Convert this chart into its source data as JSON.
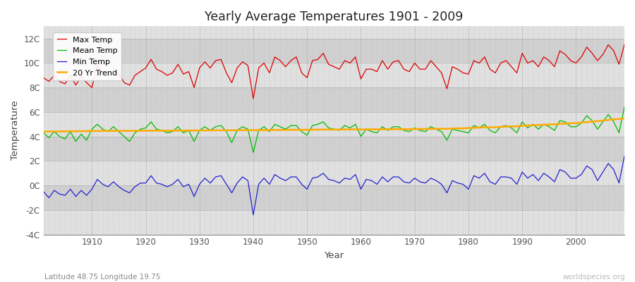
{
  "title": "Yearly Average Temperatures 1901 - 2009",
  "xlabel": "Year",
  "ylabel": "Temperature",
  "subtitle_left": "Latitude 48.75 Longitude 19.75",
  "subtitle_right": "worldspecies.org",
  "ylim": [
    -4,
    13
  ],
  "xlim": [
    1901,
    2009
  ],
  "yticks": [
    -4,
    -2,
    0,
    2,
    4,
    6,
    8,
    10,
    12
  ],
  "ytick_labels": [
    "-4C",
    "-2C",
    "0C",
    "2C",
    "4C",
    "6C",
    "8C",
    "10C",
    "12C"
  ],
  "band_colors": [
    "#e8e8e8",
    "#d8d8d8"
  ],
  "plot_bg_color": "#e8e8e8",
  "line_colors": {
    "max": "#dd0000",
    "mean": "#00bb00",
    "min": "#2222cc",
    "trend": "#ffaa00"
  },
  "legend_labels": [
    "Max Temp",
    "Mean Temp",
    "Min Temp",
    "20 Yr Trend"
  ],
  "years": [
    1901,
    1902,
    1903,
    1904,
    1905,
    1906,
    1907,
    1908,
    1909,
    1910,
    1911,
    1912,
    1913,
    1914,
    1915,
    1916,
    1917,
    1918,
    1919,
    1920,
    1921,
    1922,
    1923,
    1924,
    1925,
    1926,
    1927,
    1928,
    1929,
    1930,
    1931,
    1932,
    1933,
    1934,
    1935,
    1936,
    1937,
    1938,
    1939,
    1940,
    1941,
    1942,
    1943,
    1944,
    1945,
    1946,
    1947,
    1948,
    1949,
    1950,
    1951,
    1952,
    1953,
    1954,
    1955,
    1956,
    1957,
    1958,
    1959,
    1960,
    1961,
    1962,
    1963,
    1964,
    1965,
    1966,
    1967,
    1968,
    1969,
    1970,
    1971,
    1972,
    1973,
    1974,
    1975,
    1976,
    1977,
    1978,
    1979,
    1980,
    1981,
    1982,
    1983,
    1984,
    1985,
    1986,
    1987,
    1988,
    1989,
    1990,
    1991,
    1992,
    1993,
    1994,
    1995,
    1996,
    1997,
    1998,
    1999,
    2000,
    2001,
    2002,
    2003,
    2004,
    2005,
    2006,
    2007,
    2008,
    2009
  ],
  "max_temp": [
    8.8,
    8.5,
    9.0,
    8.5,
    8.3,
    9.0,
    8.2,
    8.9,
    8.4,
    8.0,
    9.8,
    9.2,
    9.0,
    9.5,
    9.1,
    8.4,
    8.2,
    9.0,
    9.3,
    9.6,
    10.3,
    9.5,
    9.3,
    9.0,
    9.2,
    9.9,
    9.1,
    9.3,
    8.0,
    9.6,
    10.1,
    9.6,
    10.2,
    10.3,
    9.2,
    8.4,
    9.6,
    10.1,
    9.8,
    7.1,
    9.6,
    10.0,
    9.2,
    10.5,
    10.2,
    9.7,
    10.2,
    10.5,
    9.2,
    8.8,
    10.2,
    10.3,
    10.8,
    9.9,
    9.7,
    9.5,
    10.2,
    10.0,
    10.5,
    8.7,
    9.5,
    9.5,
    9.3,
    10.2,
    9.5,
    10.1,
    10.2,
    9.5,
    9.3,
    10.0,
    9.5,
    9.5,
    10.2,
    9.7,
    9.2,
    7.9,
    9.7,
    9.5,
    9.2,
    9.1,
    10.2,
    10.0,
    10.5,
    9.5,
    9.2,
    10.0,
    10.2,
    9.7,
    9.2,
    10.8,
    10.0,
    10.2,
    9.7,
    10.5,
    10.2,
    9.7,
    11.0,
    10.7,
    10.2,
    10.0,
    10.5,
    11.3,
    10.8,
    10.2,
    10.7,
    11.5,
    11.0,
    9.9,
    11.5
  ],
  "mean_temp": [
    4.3,
    3.9,
    4.4,
    4.0,
    3.8,
    4.4,
    3.6,
    4.2,
    3.7,
    4.6,
    5.0,
    4.6,
    4.4,
    4.8,
    4.4,
    4.0,
    3.6,
    4.3,
    4.6,
    4.7,
    5.2,
    4.6,
    4.5,
    4.3,
    4.4,
    4.8,
    4.3,
    4.5,
    3.6,
    4.5,
    4.8,
    4.5,
    4.8,
    4.9,
    4.4,
    3.5,
    4.5,
    4.8,
    4.6,
    2.7,
    4.5,
    4.8,
    4.4,
    5.0,
    4.8,
    4.6,
    4.9,
    4.9,
    4.4,
    4.1,
    4.9,
    5.0,
    5.2,
    4.7,
    4.6,
    4.5,
    4.9,
    4.7,
    5.0,
    4.0,
    4.6,
    4.4,
    4.3,
    4.8,
    4.5,
    4.8,
    4.8,
    4.5,
    4.4,
    4.7,
    4.5,
    4.4,
    4.8,
    4.6,
    4.4,
    3.7,
    4.6,
    4.5,
    4.4,
    4.3,
    4.9,
    4.7,
    5.0,
    4.5,
    4.3,
    4.8,
    4.9,
    4.7,
    4.3,
    5.2,
    4.7,
    5.0,
    4.6,
    5.0,
    4.8,
    4.5,
    5.3,
    5.2,
    4.8,
    4.8,
    5.1,
    5.7,
    5.3,
    4.6,
    5.2,
    5.8,
    5.2,
    4.3,
    6.4
  ],
  "min_temp": [
    -0.5,
    -1.0,
    -0.4,
    -0.7,
    -0.8,
    -0.3,
    -0.9,
    -0.4,
    -0.8,
    -0.3,
    0.5,
    0.1,
    -0.1,
    0.3,
    -0.1,
    -0.4,
    -0.6,
    -0.1,
    0.2,
    0.2,
    0.8,
    0.2,
    0.1,
    -0.1,
    0.1,
    0.5,
    -0.1,
    0.1,
    -0.9,
    0.1,
    0.6,
    0.2,
    0.7,
    0.8,
    0.1,
    -0.6,
    0.2,
    0.7,
    0.4,
    -2.4,
    0.1,
    0.6,
    0.1,
    0.9,
    0.6,
    0.4,
    0.7,
    0.7,
    0.1,
    -0.3,
    0.6,
    0.7,
    1.0,
    0.5,
    0.4,
    0.2,
    0.6,
    0.5,
    0.9,
    -0.3,
    0.5,
    0.4,
    0.1,
    0.7,
    0.3,
    0.7,
    0.7,
    0.3,
    0.2,
    0.6,
    0.3,
    0.2,
    0.6,
    0.4,
    0.1,
    -0.6,
    0.4,
    0.2,
    0.1,
    -0.3,
    0.8,
    0.6,
    1.0,
    0.3,
    0.1,
    0.7,
    0.7,
    0.6,
    0.1,
    1.1,
    0.6,
    0.9,
    0.4,
    1.0,
    0.7,
    0.3,
    1.3,
    1.1,
    0.6,
    0.6,
    0.9,
    1.6,
    1.3,
    0.4,
    1.1,
    1.8,
    1.3,
    0.2,
    2.4
  ],
  "trend": [
    4.4,
    4.41,
    4.41,
    4.42,
    4.42,
    4.43,
    4.43,
    4.44,
    4.44,
    4.45,
    4.45,
    4.46,
    4.46,
    4.46,
    4.46,
    4.46,
    4.46,
    4.47,
    4.47,
    4.47,
    4.48,
    4.48,
    4.48,
    4.48,
    4.48,
    4.49,
    4.49,
    4.49,
    4.49,
    4.5,
    4.5,
    4.5,
    4.51,
    4.51,
    4.51,
    4.51,
    4.51,
    4.52,
    4.52,
    4.52,
    4.52,
    4.53,
    4.53,
    4.53,
    4.54,
    4.54,
    4.55,
    4.55,
    4.55,
    4.55,
    4.56,
    4.56,
    4.57,
    4.57,
    4.57,
    4.57,
    4.58,
    4.58,
    4.58,
    4.58,
    4.58,
    4.59,
    4.59,
    4.59,
    4.59,
    4.6,
    4.6,
    4.6,
    4.6,
    4.61,
    4.61,
    4.62,
    4.62,
    4.63,
    4.63,
    4.63,
    4.65,
    4.67,
    4.67,
    4.69,
    4.71,
    4.73,
    4.75,
    4.75,
    4.75,
    4.79,
    4.81,
    4.83,
    4.83,
    4.88,
    4.9,
    4.92,
    4.94,
    4.96,
    4.98,
    5.0,
    5.04,
    5.06,
    5.08,
    5.1,
    5.14,
    5.18,
    5.22,
    5.26,
    5.3,
    5.36,
    5.4,
    5.43,
    5.48
  ]
}
